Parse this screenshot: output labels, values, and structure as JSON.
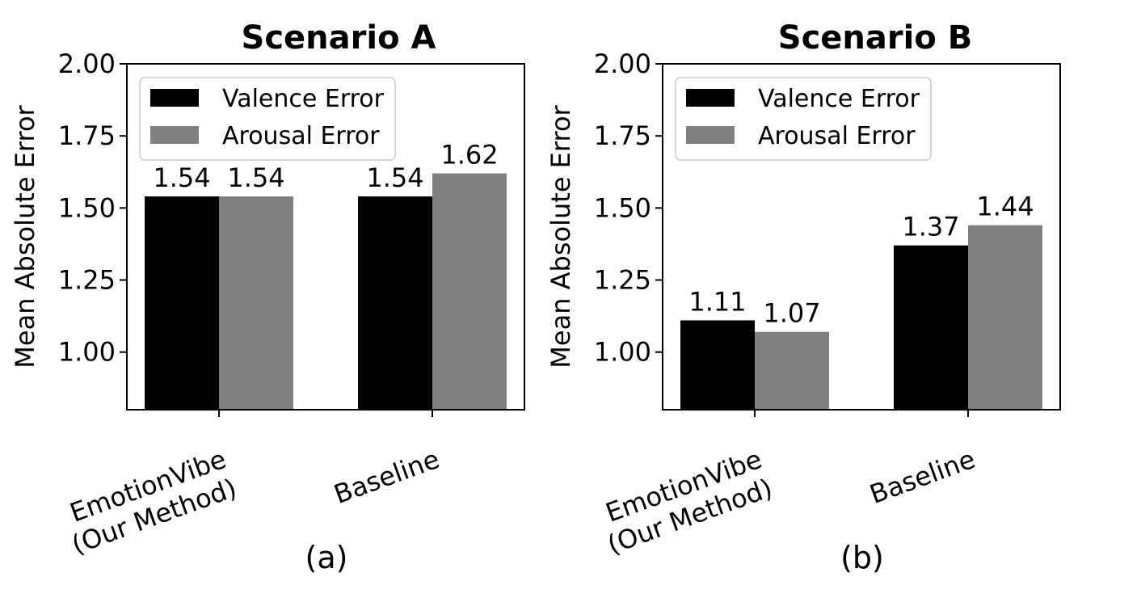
{
  "chart_data": [
    {
      "type": "bar",
      "title": "Scenario A",
      "caption": "(a)",
      "ylabel": "Mean Absolute Error",
      "categories": [
        [
          "EmotionVibe",
          "(Our Method)"
        ],
        [
          "Baseline"
        ]
      ],
      "ylim": [
        0.8,
        2.0
      ],
      "yticks": [
        "1.00",
        "1.25",
        "1.50",
        "1.75",
        "2.00"
      ],
      "legend_position": "upper-left",
      "grid": false,
      "series": [
        {
          "name": "Valence Error",
          "color": "#000000",
          "values": [
            1.54,
            1.54
          ],
          "labels": [
            "1.54",
            "1.54"
          ]
        },
        {
          "name": "Arousal Error",
          "color": "#808080",
          "values": [
            1.54,
            1.62
          ],
          "labels": [
            "1.54",
            "1.62"
          ]
        }
      ]
    },
    {
      "type": "bar",
      "title": "Scenario B",
      "caption": "(b)",
      "ylabel": "Mean Absolute Error",
      "categories": [
        [
          "EmotionVibe",
          "(Our Method)"
        ],
        [
          "Baseline"
        ]
      ],
      "ylim": [
        0.8,
        2.0
      ],
      "yticks": [
        "1.00",
        "1.25",
        "1.50",
        "1.75",
        "2.00"
      ],
      "legend_position": "upper-left",
      "grid": false,
      "series": [
        {
          "name": "Valence Error",
          "color": "#000000",
          "values": [
            1.11,
            1.37
          ],
          "labels": [
            "1.11",
            "1.37"
          ]
        },
        {
          "name": "Arousal Error",
          "color": "#808080",
          "values": [
            1.07,
            1.44
          ],
          "labels": [
            "1.07",
            "1.44"
          ]
        }
      ]
    }
  ]
}
